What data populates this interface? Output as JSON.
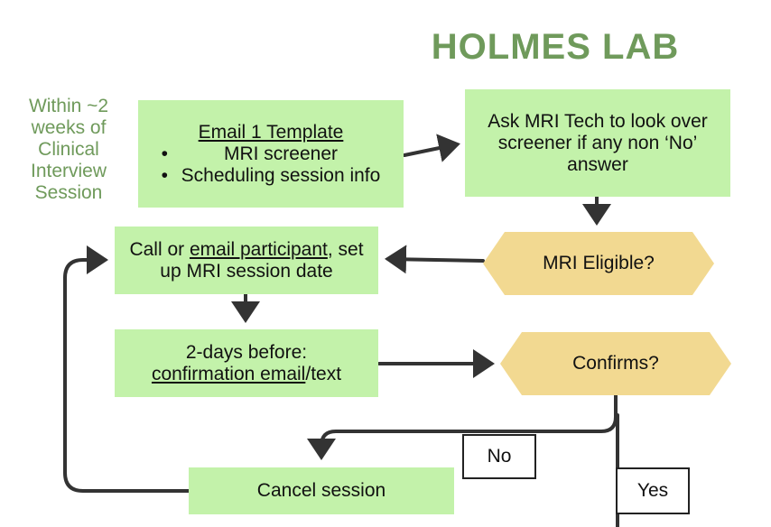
{
  "header": {
    "title": "HOLMES LAB"
  },
  "side_note": {
    "lines": [
      "Within ~2",
      "weeks of",
      "Clinical",
      "Interview",
      "Session"
    ]
  },
  "nodes": {
    "email_template": {
      "title": "Email 1 Template",
      "bullets": [
        "MRI screener",
        "Scheduling session info"
      ]
    },
    "ask_tech": {
      "text": "Ask MRI Tech to look over screener if any non ‘No’ answer"
    },
    "mri_eligible": {
      "text": "MRI Eligible?"
    },
    "call_participant": {
      "part1": "Call or ",
      "link": "email participant",
      "part2": ", set up MRI session date"
    },
    "confirmation": {
      "line1": "2-days before:",
      "link": "confirmation email",
      "part2": "/text"
    },
    "confirms": {
      "text": "Confirms?"
    },
    "cancel": {
      "text": "Cancel session"
    }
  },
  "edge_labels": {
    "no": "No",
    "yes": "Yes"
  },
  "colors": {
    "box_fill": "#c3f2aa",
    "decision_fill": "#f2d991",
    "title_green": "#6f9a5b",
    "arrow": "#333333"
  }
}
